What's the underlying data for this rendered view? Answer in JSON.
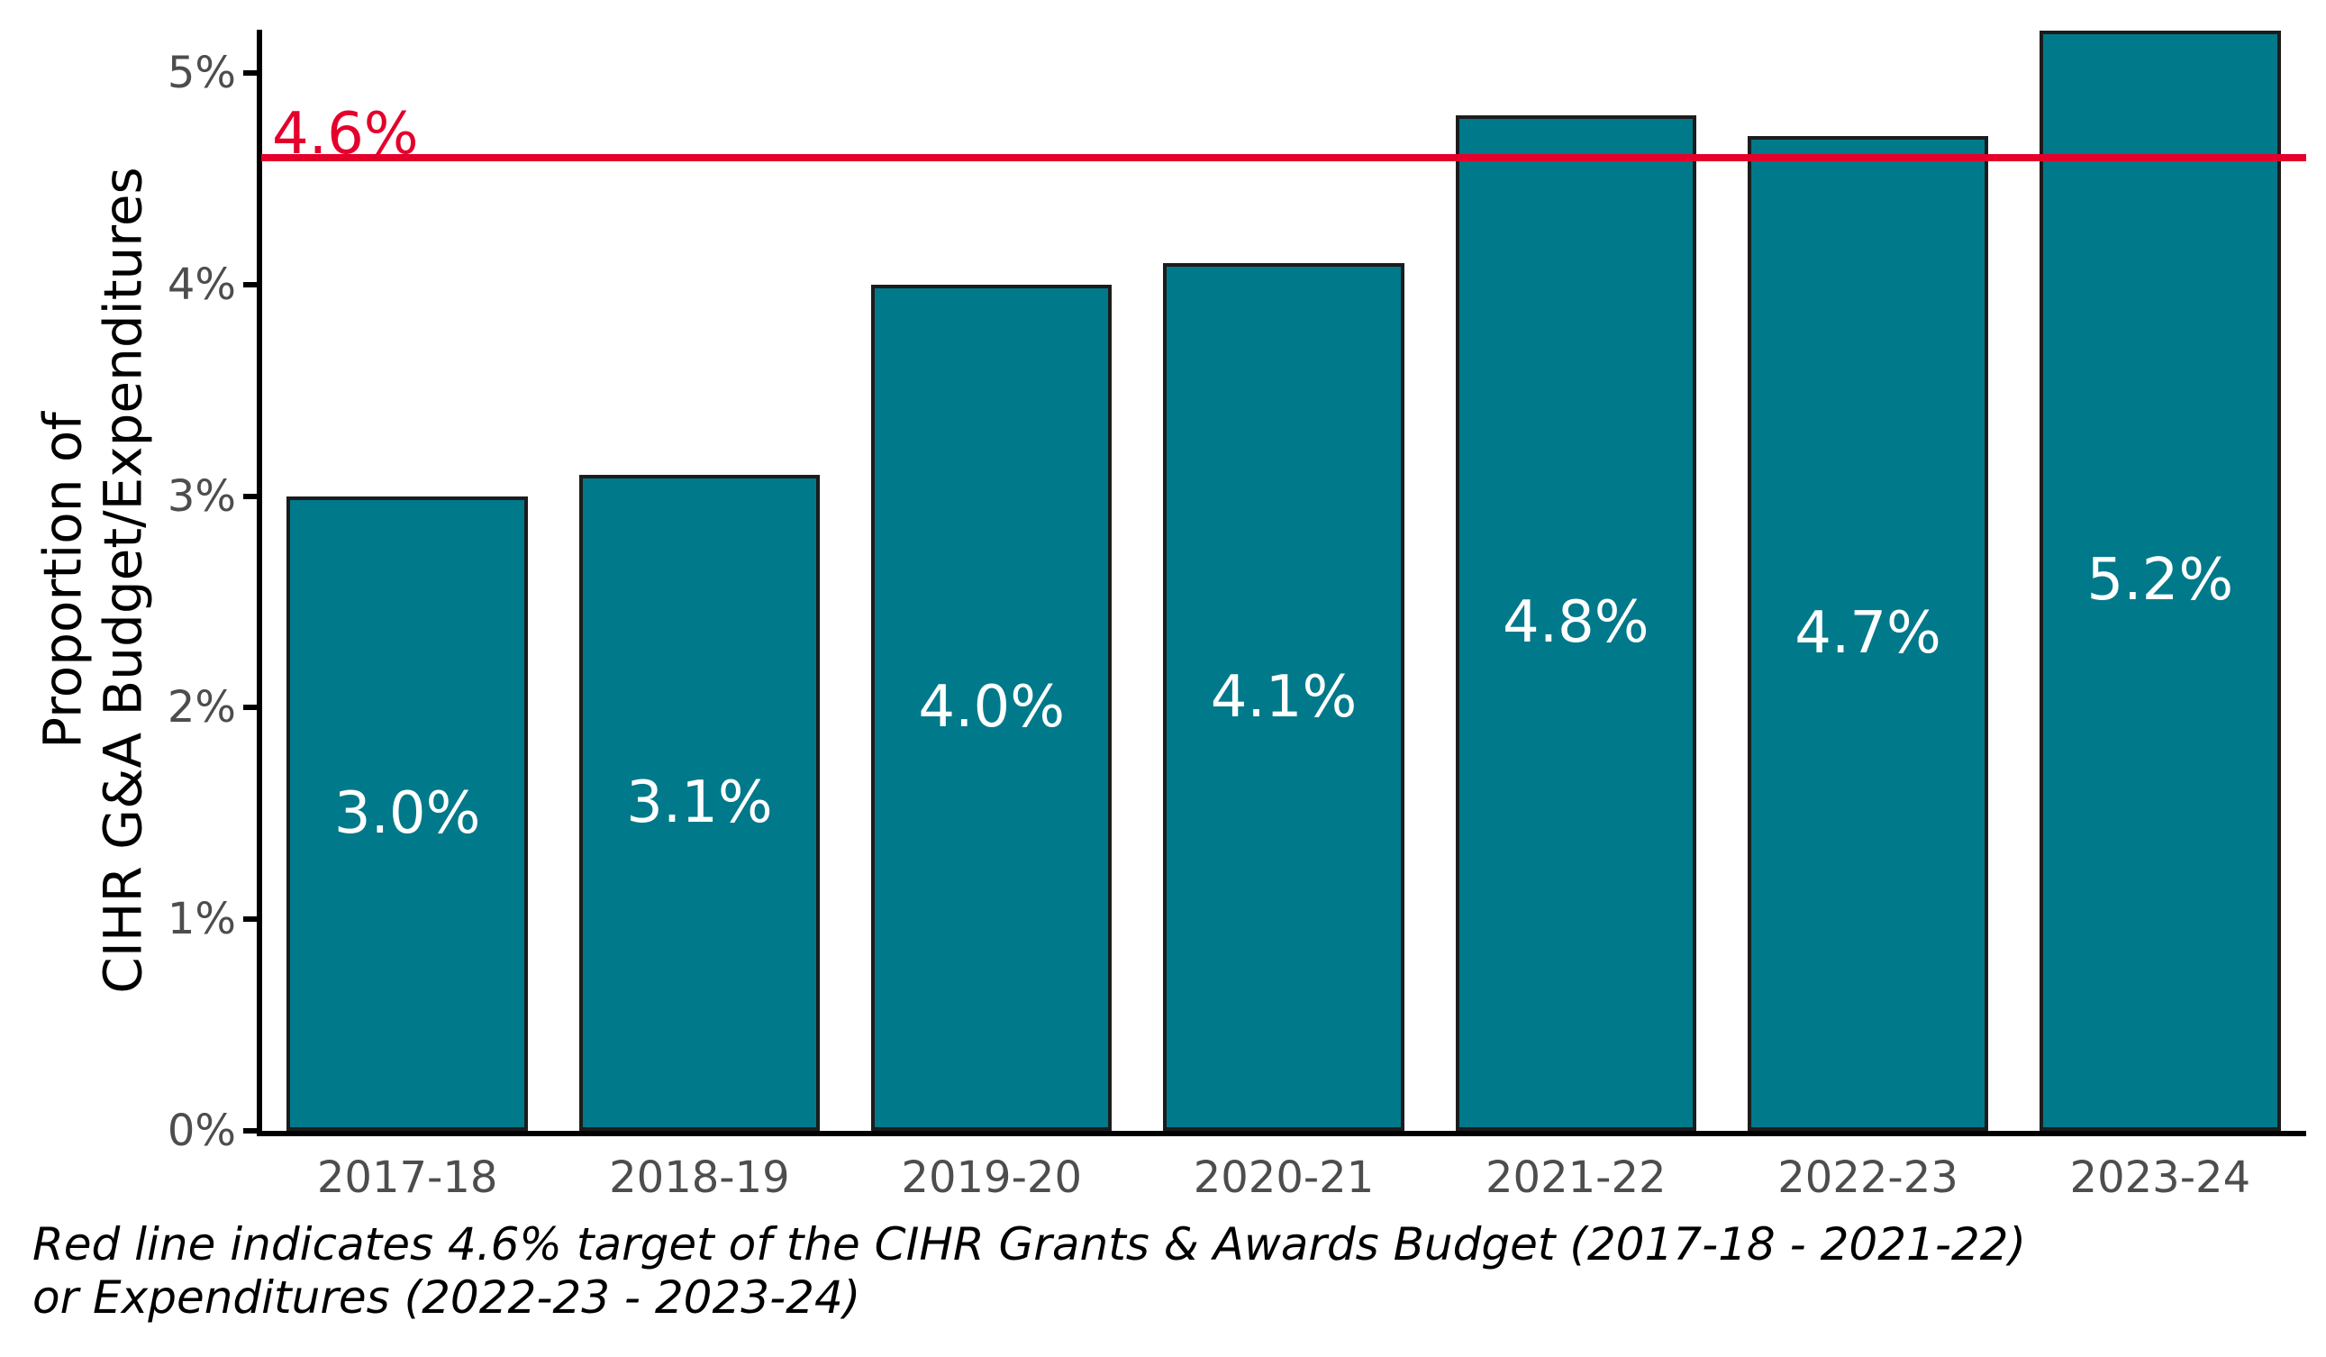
{
  "chart_data": {
    "type": "bar",
    "title": "",
    "categories": [
      "2017-18",
      "2018-19",
      "2019-20",
      "2020-21",
      "2021-22",
      "2022-23",
      "2023-24"
    ],
    "values": [
      3.0,
      3.1,
      4.0,
      4.1,
      4.8,
      4.7,
      5.2
    ],
    "bar_labels": [
      "3.0%",
      "3.1%",
      "4.0%",
      "4.1%",
      "4.8%",
      "4.7%",
      "5.2%"
    ],
    "xlabel": "",
    "ylabel_line1": "Proportion of",
    "ylabel_line2": "CIHR G&A Budget/Expenditures",
    "ylim": [
      0,
      5.204
    ],
    "grid": false,
    "legend": "none",
    "y_ticks": [
      {
        "value": 0,
        "label": "0%"
      },
      {
        "value": 1,
        "label": "1%"
      },
      {
        "value": 2,
        "label": "2%"
      },
      {
        "value": 3,
        "label": "3%"
      },
      {
        "value": 4,
        "label": "4%"
      },
      {
        "value": 5,
        "label": "5%"
      }
    ],
    "target_line": {
      "value": 4.6,
      "label": "4.6%"
    },
    "caption_line1": "Red line indicates 4.6% target of the CIHR Grants & Awards Budget (2017-18 - 2021-22)",
    "caption_line2": "or Expenditures (2022-23 - 2023-24)"
  },
  "colors": {
    "background": "#ffffff",
    "bar": "#00798a",
    "bar_border": "#1c1c1c",
    "bar_value_label": "#ffffff",
    "axis": "#000000",
    "tick_label": "#4d4d4d",
    "target_line": "#e4002b"
  }
}
